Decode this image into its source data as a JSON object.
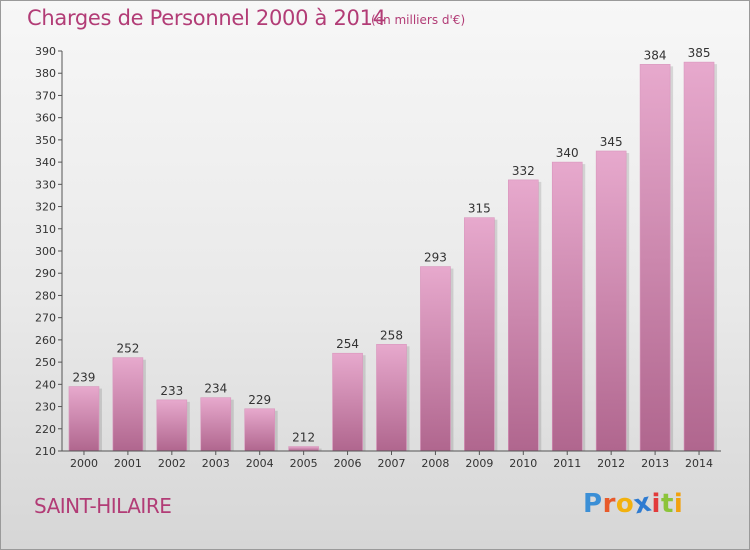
{
  "header": {
    "title": "Charges de Personnel 2000 à 2014",
    "subtitle": "(en milliers d'€)"
  },
  "footer": {
    "location": "SAINT-HILAIRE",
    "logo_letters": [
      "P",
      "r",
      "o",
      "x",
      "i",
      "t",
      "i"
    ],
    "logo_colors": [
      "#3b8fd6",
      "#e85a2a",
      "#f2b10e",
      "#2e7bd1",
      "#e23b3b",
      "#8cc43a",
      "#f2a10e"
    ]
  },
  "colors": {
    "bar_top": "#e7a9cd",
    "bar_bottom": "#b0668e",
    "axis": "#555555",
    "text": "#333333",
    "accent": "#b23c76"
  },
  "chart_data": {
    "type": "bar",
    "title": "Charges de Personnel 2000 à 2014",
    "subtitle": "(en milliers d'€)",
    "xlabel": "",
    "ylabel": "",
    "categories": [
      "2000",
      "2001",
      "2002",
      "2003",
      "2004",
      "2005",
      "2006",
      "2007",
      "2008",
      "2009",
      "2010",
      "2011",
      "2012",
      "2013",
      "2014"
    ],
    "values": [
      239,
      252,
      233,
      234,
      229,
      212,
      254,
      258,
      293,
      315,
      332,
      340,
      345,
      384,
      385
    ],
    "ylim": [
      210,
      390
    ],
    "yticks": [
      210,
      220,
      230,
      240,
      250,
      260,
      270,
      280,
      290,
      300,
      310,
      320,
      330,
      340,
      350,
      360,
      370,
      380,
      390
    ],
    "grid": false,
    "legend": "none"
  }
}
